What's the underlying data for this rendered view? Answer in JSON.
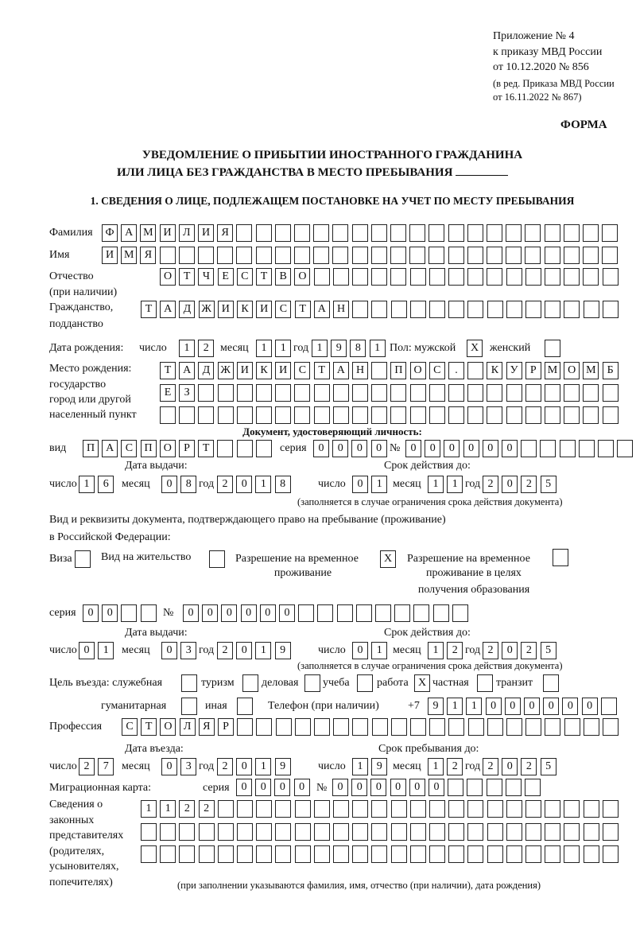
{
  "header": {
    "line1": "Приложение № 4",
    "line2": "к приказу МВД России",
    "line3": "от 10.12.2020 № 856",
    "line4": "(в ред. Приказа МВД России",
    "line5": "от 16.11.2022 № 867)",
    "form_label": "ФОРМА"
  },
  "title": {
    "line1": "УВЕДОМЛЕНИЕ О ПРИБЫТИИ ИНОСТРАННОГО ГРАЖДАНИНА",
    "line2": "ИЛИ ЛИЦА БЕЗ ГРАЖДАНСТВА В МЕСТО ПРЕБЫВАНИЯ"
  },
  "section1": {
    "heading": "1. СВЕДЕНИЯ О ЛИЦЕ, ПОДЛЕЖАЩЕМ ПОСТАНОВКЕ НА УЧЕТ ПО МЕСТУ ПРЕБЫВАНИЯ"
  },
  "labels": {
    "surname": "Фамилия",
    "name": "Имя",
    "patronymic": "Отчество",
    "patronymic_note": "(при наличии)",
    "citizenship": "Гражданство,",
    "citizenship2": "подданство",
    "birth_date": "Дата рождения:",
    "day": "число",
    "month": "месяц",
    "year": "год",
    "sex": "Пол: мужской",
    "female": "женский",
    "birth_place1": "Место рождения:",
    "birth_place2": "государство",
    "birth_place3": "город или другой",
    "birth_place4": "населенный пункт",
    "id_doc": "Документ, удостоверяющий личность:",
    "kind": "вид",
    "series": "серия",
    "number": "№",
    "issue_date": "Дата выдачи:",
    "valid_until": "Срок действия до:",
    "validity_note": "(заполняется в случае ограничения срока действия документа)",
    "stay_doc1": "Вид и реквизиты документа, подтверждающего право на пребывание (проживание)",
    "stay_doc2": "в Российской Федерации:",
    "visa": "Виза",
    "residence": "Вид на жительство",
    "temp_permit1": "Разрешение на временное",
    "temp_permit2": "проживание",
    "edu_permit1": "Разрешение на временное",
    "edu_permit2": "проживание в целях",
    "edu_permit3": "получения образования",
    "purpose": "Цель въезда: служебная",
    "tourism": "туризм",
    "business": "деловая",
    "study": "учеба",
    "work": "работа",
    "private": "частная",
    "transit": "транзит",
    "humanitarian": "гуманитарная",
    "other": "иная",
    "phone": "Телефон (при наличии)",
    "phone_prefix": "+7",
    "profession": "Профессия",
    "entry_date": "Дата въезда:",
    "stay_until": "Срок пребывания до:",
    "migration_card": "Миграционная карта:",
    "reps1": "Сведения о",
    "reps2": "законных",
    "reps3": "представителях",
    "reps4": "(родителях,",
    "reps5": "усыновителях,",
    "reps6": "попечителях)",
    "reps_note": "(при заполнении указываются фамилия, имя, отчество (при наличии), дата рождения)"
  },
  "person": {
    "surname": "ФАМИЛИЯ",
    "name": "ИМЯ",
    "patronymic": "ОТЧЕСТВО",
    "citizenship": "ТАДЖИКИСТАН",
    "birth_day": "12",
    "birth_month": "11",
    "birth_year": "1981",
    "sex_male": "X",
    "sex_female": "",
    "birth_place_1": "ТАДЖИКИСТАН ПОС. КУРМОМБ",
    "birth_place_2": "ЕЗ",
    "birth_place_3": ""
  },
  "id_document": {
    "kind": "ПАСПОРТ",
    "series": "0000",
    "number": "000000",
    "issue_day": "16",
    "issue_month": "08",
    "issue_year": "2018",
    "valid_day": "01",
    "valid_month": "11",
    "valid_year": "2025"
  },
  "stay_document": {
    "visa": "",
    "residence": "",
    "temp_permit": "X",
    "edu_permit": "",
    "series": "00",
    "number": "000000",
    "issue_day": "01",
    "issue_month": "03",
    "issue_year": "2019",
    "valid_day": "01",
    "valid_month": "12",
    "valid_year": "2025"
  },
  "purpose": {
    "official": "",
    "tourism": "",
    "business": "",
    "study": "",
    "work": "X",
    "private": "",
    "transit": "",
    "humanitarian": "",
    "other": ""
  },
  "phone": "911000000",
  "profession": "СТОЛЯР",
  "entry": {
    "day": "27",
    "month": "03",
    "year": "2019",
    "until_day": "19",
    "until_month": "12",
    "until_year": "2025"
  },
  "migration_card": {
    "series": "0000",
    "number": "000000"
  },
  "representatives": {
    "row1": "1122",
    "row2": "",
    "row3": ""
  }
}
